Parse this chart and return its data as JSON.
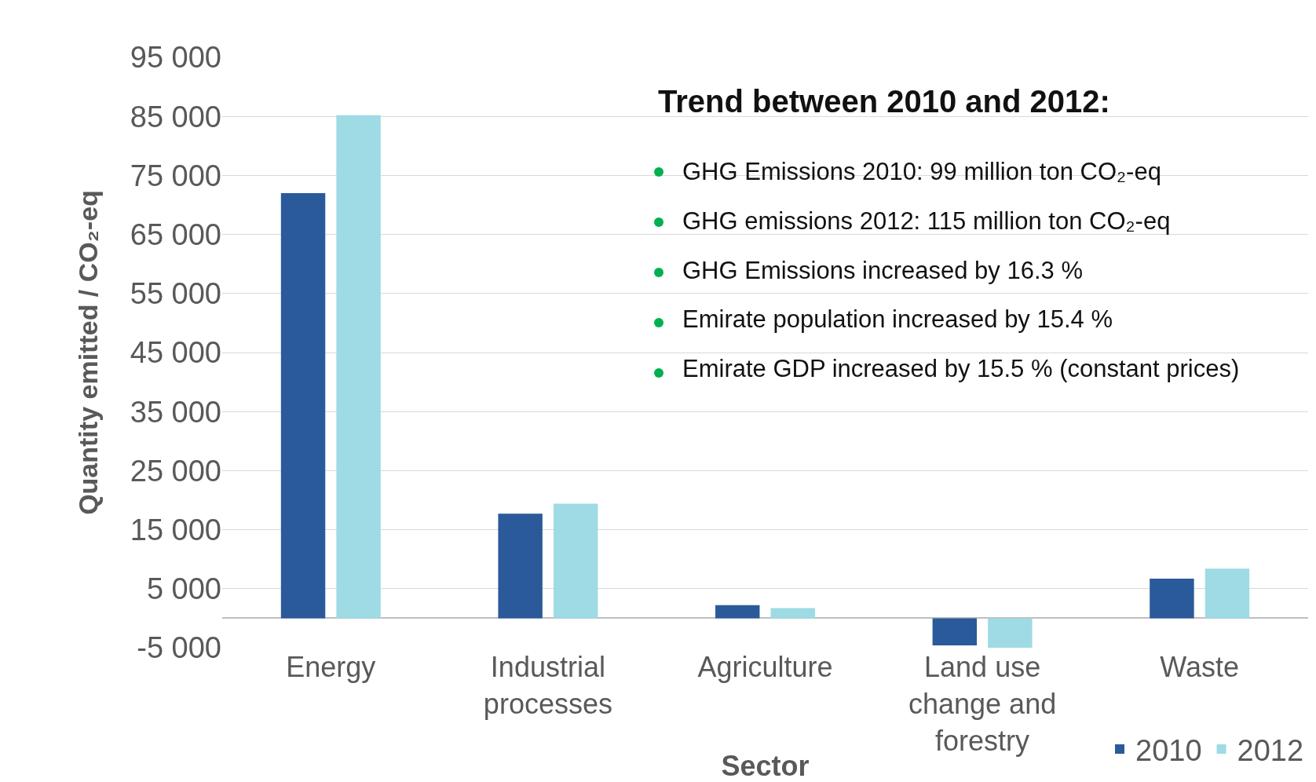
{
  "chart_data": {
    "type": "bar",
    "xlabel": "Sector",
    "ylabel": "Quantity emitted / CO₂-eq",
    "categories": [
      "Energy",
      "Industrial processes",
      "Agriculture",
      "Land use change and forestry",
      "Waste"
    ],
    "series": [
      {
        "name": "2010",
        "color": "#2a5a9a",
        "values": [
          72000,
          17700,
          2200,
          -4600,
          6700
        ]
      },
      {
        "name": "2012",
        "color": "#9edbe4",
        "values": [
          85200,
          19400,
          1700,
          -5000,
          8400
        ]
      }
    ],
    "ylim": [
      -5000,
      95000
    ],
    "yticks": [
      {
        "value": -5000,
        "label": "-5 000"
      },
      {
        "value": 5000,
        "label": "5 000"
      },
      {
        "value": 15000,
        "label": "15 000"
      },
      {
        "value": 25000,
        "label": "25 000"
      },
      {
        "value": 35000,
        "label": "35 000"
      },
      {
        "value": 45000,
        "label": "45 000"
      },
      {
        "value": 55000,
        "label": "55 000"
      },
      {
        "value": 65000,
        "label": "65 000"
      },
      {
        "value": 75000,
        "label": "75 000"
      },
      {
        "value": 85000,
        "label": "85 000"
      },
      {
        "value": 95000,
        "label": "95 000"
      }
    ],
    "grid": "y",
    "legend": "bottom right",
    "annotations": [
      "Trend between 2010 and 2012:",
      "GHG Emissions 2010: 99 million ton CO₂-eq",
      "GHG emissions 2012: 115 million ton CO₂-eq",
      "GHG Emissions increased by 16.3 %",
      "Emirate population increased by 15.4 %",
      "Emirate GDP increased by 15.5 % (constant prices)"
    ]
  }
}
